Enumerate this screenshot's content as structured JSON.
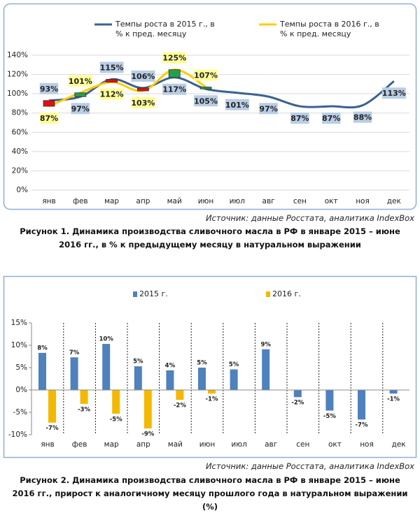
{
  "chart_data": [
    {
      "type": "line",
      "categories": [
        "янв",
        "фев",
        "мар",
        "апр",
        "май",
        "июн",
        "июл",
        "авг",
        "сен",
        "окт",
        "ноя",
        "дек"
      ],
      "series": [
        {
          "name": "Темпы роста в 2015 г., в % к пред. месяцу",
          "color": "#3b6290",
          "values": [
            93,
            97,
            115,
            106,
            117,
            105,
            101,
            97,
            87,
            87,
            88,
            113
          ],
          "value_labels": [
            "93%",
            "97%",
            "115%",
            "106%",
            "117%",
            "105%",
            "101%",
            "97%",
            "87%",
            "87%",
            "88%",
            "113%"
          ]
        },
        {
          "name": "Темпы роста в 2016 г., в % к пред. месяцу",
          "color": "#ffcc00",
          "values": [
            87,
            101,
            112,
            103,
            125,
            107,
            null,
            null,
            null,
            null,
            null,
            null
          ],
          "value_labels": [
            "87%",
            "101%",
            "112%",
            "103%",
            "125%",
            "107%",
            null,
            null,
            null,
            null,
            null,
            null
          ]
        }
      ],
      "updown_colors": {
        "up": "#22a04a",
        "down": "#e01010"
      },
      "ylim": [
        0,
        140
      ],
      "yticks": [
        {
          "value": 0,
          "label": "0%"
        },
        {
          "value": 20,
          "label": "20%"
        },
        {
          "value": 40,
          "label": "40%"
        },
        {
          "value": 60,
          "label": "60%"
        },
        {
          "value": 80,
          "label": "80%"
        },
        {
          "value": 100,
          "label": "100%"
        },
        {
          "value": 120,
          "label": "120%"
        },
        {
          "value": 140,
          "label": "140%"
        }
      ],
      "grid": true,
      "source": "Источник: данные Росстата, аналитика IndexBox",
      "caption": "Рисунок 1. Динамика производства сливочного масла в РФ в январе 2015 – июне 2016 гг., в % к предыдущему месяцу в натуральном выражении"
    },
    {
      "type": "bar",
      "categories": [
        "янв",
        "фев",
        "мар",
        "апр",
        "май",
        "июн",
        "июл",
        "авг",
        "сен",
        "окт",
        "ноя",
        "дек"
      ],
      "series": [
        {
          "name": "2015 г.",
          "color": "#4f81bd",
          "values": [
            8.3,
            7.3,
            10.3,
            5.3,
            4.4,
            5.0,
            4.6,
            9.1,
            -1.6,
            -4.6,
            -6.6,
            -0.8
          ],
          "value_labels": [
            "8%",
            "7%",
            "10%",
            "5%",
            "4%",
            "5%",
            "5%",
            "9%",
            "-2%",
            "-5%",
            "-7%",
            "-1%"
          ]
        },
        {
          "name": "2016 г.",
          "color": "#f5b800",
          "values": [
            -7.3,
            -3.1,
            -5.3,
            -8.6,
            -2.2,
            -0.8,
            null,
            null,
            null,
            null,
            null,
            null
          ],
          "value_labels": [
            "-7%",
            "-3%",
            "-5%",
            "-9%",
            "-2%",
            "-1%",
            null,
            null,
            null,
            null,
            null,
            null
          ]
        }
      ],
      "ylim": [
        -10,
        15
      ],
      "yticks": [
        {
          "value": -10,
          "label": "-10%"
        },
        {
          "value": -5,
          "label": "-5%"
        },
        {
          "value": 0,
          "label": "0%"
        },
        {
          "value": 5,
          "label": "5%"
        },
        {
          "value": 10,
          "label": "10%"
        },
        {
          "value": 15,
          "label": "15%"
        }
      ],
      "source": "Источник: данные Росстата, аналитика IndexBox",
      "caption": "Рисунок 2. Динамика производства сливочного масла в РФ в январе 2015 – июне 2016 гг., прирост к аналогичному месяцу прошлого года в натуральном выражении (%)"
    }
  ]
}
